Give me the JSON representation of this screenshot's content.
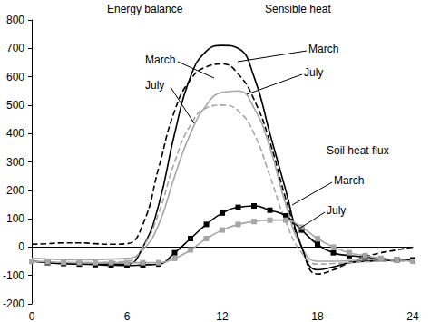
{
  "chart_data": {
    "type": "line",
    "x": [
      0,
      1,
      2,
      3,
      4,
      5,
      6,
      7,
      8,
      9,
      10,
      11,
      12,
      13,
      14,
      15,
      16,
      17,
      18,
      19,
      20,
      21,
      22,
      23,
      24
    ],
    "xlim": [
      0,
      24
    ],
    "xticks": [
      0,
      6,
      12,
      18,
      24
    ],
    "ylim": [
      -200,
      800
    ],
    "yticks": [
      -200,
      -100,
      0,
      100,
      200,
      300,
      400,
      500,
      600,
      700,
      800
    ],
    "grid": false,
    "annotations": [
      "Energy balance",
      "March",
      "July",
      "Sensible heat",
      "March",
      "July",
      "Soil heat flux",
      "March",
      "July"
    ],
    "series": [
      {
        "name": "March",
        "color": "#000000",
        "line_style": "dashed",
        "marker": "none",
        "values": [
          10,
          12,
          15,
          15,
          12,
          10,
          12,
          80,
          280,
          480,
          590,
          635,
          645,
          610,
          520,
          370,
          170,
          0,
          -95,
          -80,
          -55,
          -35,
          -20,
          -10,
          0
        ]
      },
      {
        "name": "July",
        "color": "#a6a6a6",
        "line_style": "solid",
        "marker": "none",
        "values": [
          -40,
          -42,
          -45,
          -45,
          -45,
          -42,
          -40,
          -10,
          80,
          250,
          400,
          500,
          545,
          550,
          490,
          350,
          150,
          0,
          -50,
          -50,
          -48,
          -46,
          -45,
          -45,
          -45
        ]
      },
      {
        "name": "March",
        "color": "#000000",
        "line_style": "solid",
        "marker": "none",
        "values": [
          -50,
          -55,
          -58,
          -60,
          -60,
          -60,
          -60,
          0,
          150,
          400,
          600,
          690,
          710,
          700,
          600,
          400,
          200,
          0,
          -80,
          -70,
          -55,
          -50,
          -48,
          -46,
          -45
        ]
      },
      {
        "name": "July",
        "color": "#a6a6a6",
        "line_style": "dashed",
        "marker": "none",
        "values": [
          -50,
          -52,
          -55,
          -55,
          -55,
          -52,
          -50,
          0,
          120,
          300,
          430,
          490,
          500,
          480,
          400,
          250,
          90,
          -20,
          -60,
          -58,
          -55,
          -52,
          -50,
          -50,
          -50
        ]
      },
      {
        "name": "March",
        "color": "#000000",
        "line_style": "solid",
        "marker": "square",
        "values": [
          -50,
          -55,
          -58,
          -60,
          -62,
          -64,
          -65,
          -63,
          -60,
          -20,
          30,
          80,
          120,
          140,
          145,
          130,
          110,
          60,
          10,
          -20,
          -30,
          -35,
          -40,
          -45,
          -45
        ]
      },
      {
        "name": "July",
        "color": "#a6a6a6",
        "line_style": "solid",
        "marker": "square",
        "values": [
          -50,
          -52,
          -54,
          -55,
          -55,
          -55,
          -55,
          -55,
          -55,
          -40,
          -10,
          30,
          60,
          80,
          90,
          95,
          95,
          70,
          30,
          0,
          -20,
          -30,
          -40,
          -45,
          -50
        ]
      }
    ]
  }
}
